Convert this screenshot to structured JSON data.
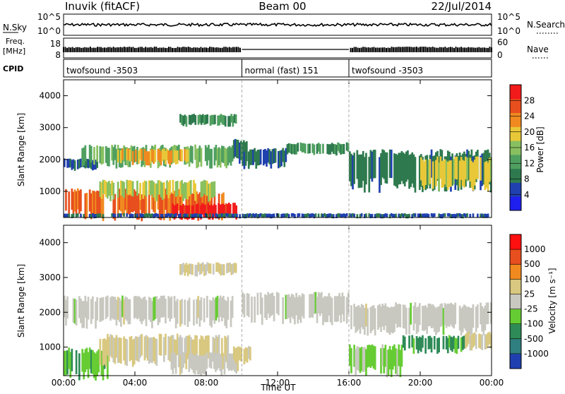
{
  "header": {
    "left": "Inuvik (fitACF)",
    "center": "Beam 00",
    "right": "22/Jul/2014"
  },
  "noise_panel": {
    "label": "N.Sky",
    "ticks": [
      "10^5",
      "10^0"
    ],
    "right_ticks": [
      "10^5",
      "10^0"
    ],
    "right_label": "N.Search"
  },
  "freq_panel": {
    "label_line1": "Freq.",
    "label_line2": "[MHz]",
    "ticks": [
      "18",
      "8"
    ],
    "right_ticks": [
      "60",
      "0"
    ],
    "right_label": "Nave"
  },
  "cpid": {
    "label": "CPID",
    "segments": [
      {
        "start_hour": 0,
        "end_hour": 10,
        "text": "twofsound -3503"
      },
      {
        "start_hour": 10,
        "end_hour": 16,
        "text": "normal (fast) 151"
      },
      {
        "start_hour": 16,
        "end_hour": 24,
        "text": "twofsound -3503"
      }
    ]
  },
  "axes": {
    "ylabel": "Slant Range [km]",
    "xlabel": "Time UT",
    "xticks": [
      "00:00",
      "04:00",
      "08:00",
      "12:00",
      "16:00",
      "20:00",
      "00:00"
    ],
    "yticks": [
      "1000",
      "2000",
      "3000",
      "4000"
    ]
  },
  "colorbars": {
    "power": {
      "label": "Power [dB]",
      "ticks": [
        "28",
        "24",
        "20",
        "16",
        "12",
        "8",
        "4"
      ]
    },
    "velocity": {
      "label": "Velocity [m s⁻¹]",
      "ticks": [
        "1000",
        "500",
        "100",
        "25",
        "-25",
        "-100",
        "-500",
        "-1000"
      ]
    }
  },
  "colors": {
    "power_scale": [
      "#1f1ff0",
      "#2040b0",
      "#2e7a4e",
      "#4fa060",
      "#88c060",
      "#e8c838",
      "#f08a20",
      "#e84f1e",
      "#f21a1a"
    ],
    "velocity_scale": [
      "#1f3fb0",
      "#2f7f80",
      "#2e8b57",
      "#66cc33",
      "#c8c8c0",
      "#d8c880",
      "#f08a20",
      "#e84f1e",
      "#ff1010"
    ]
  },
  "chart_data": [
    {
      "type": "heatmap",
      "title": "",
      "xlabel": "Time UT",
      "ylabel": "Slant Range [km]",
      "xlim": [
        0,
        24
      ],
      "ylim": [
        180,
        4500
      ],
      "colorbar": "Power [dB]",
      "clim": [
        0,
        30
      ],
      "bands": [
        {
          "t0": 0.0,
          "t1": 2.0,
          "r0": 1700,
          "r1": 2000,
          "value": 6
        },
        {
          "t0": 1.0,
          "t1": 9.5,
          "r0": 1850,
          "r1": 2400,
          "value": 13
        },
        {
          "t0": 3.0,
          "t1": 7.0,
          "r0": 1900,
          "r1": 2300,
          "value": 20
        },
        {
          "t0": 9.5,
          "t1": 10.3,
          "r0": 2000,
          "r1": 2600,
          "value": 8
        },
        {
          "t0": 10.0,
          "t1": 12.5,
          "r0": 1800,
          "r1": 2300,
          "value": 7
        },
        {
          "t0": 12.5,
          "t1": 16.0,
          "r0": 2200,
          "r1": 2500,
          "value": 10
        },
        {
          "t0": 16.0,
          "t1": 24.0,
          "r0": 1200,
          "r1": 2200,
          "value": 8
        },
        {
          "t0": 20.0,
          "t1": 24.0,
          "r0": 1200,
          "r1": 2000,
          "value": 18
        },
        {
          "t0": 0.0,
          "t1": 9.0,
          "r0": 250,
          "r1": 1000,
          "value": 24
        },
        {
          "t0": 2.0,
          "t1": 8.5,
          "r0": 800,
          "r1": 1300,
          "value": 16
        },
        {
          "t0": 6.0,
          "t1": 9.8,
          "r0": 200,
          "r1": 600,
          "value": 28
        },
        {
          "t0": 0.0,
          "t1": 24.0,
          "r0": 180,
          "r1": 300,
          "value": 6
        },
        {
          "t0": 6.5,
          "t1": 9.7,
          "r0": 3100,
          "r1": 3400,
          "value": 10
        }
      ]
    },
    {
      "type": "heatmap",
      "title": "",
      "xlabel": "Time UT",
      "ylabel": "Slant Range [km]",
      "xlim": [
        0,
        24
      ],
      "ylim": [
        180,
        4500
      ],
      "colorbar": "Velocity [m s⁻¹]",
      "clim": [
        -1000,
        1000
      ],
      "bands": [
        {
          "t0": 0.0,
          "t1": 9.5,
          "r0": 1700,
          "r1": 2400,
          "value": 0
        },
        {
          "t0": 10.0,
          "t1": 16.0,
          "r0": 1800,
          "r1": 2500,
          "value": 0
        },
        {
          "t0": 16.0,
          "t1": 24.0,
          "r0": 1500,
          "r1": 2200,
          "value": 0
        },
        {
          "t0": 0.0,
          "t1": 2.5,
          "r0": 200,
          "r1": 900,
          "value": -300
        },
        {
          "t0": 2.0,
          "t1": 9.5,
          "r0": 600,
          "r1": 1300,
          "value": 150
        },
        {
          "t0": 6.0,
          "t1": 9.8,
          "r0": 300,
          "r1": 800,
          "value": 10
        },
        {
          "t0": 9.5,
          "t1": 10.5,
          "r0": 600,
          "r1": 1000,
          "value": 200
        },
        {
          "t0": 16.0,
          "t1": 19.0,
          "r0": 300,
          "r1": 1000,
          "value": -200
        },
        {
          "t0": 19.0,
          "t1": 22.5,
          "r0": 900,
          "r1": 1300,
          "value": -400
        },
        {
          "t0": 22.5,
          "t1": 24.0,
          "r0": 1000,
          "r1": 1400,
          "value": 200
        },
        {
          "t0": 6.5,
          "t1": 9.7,
          "r0": 3100,
          "r1": 3400,
          "value": 120
        }
      ]
    }
  ]
}
